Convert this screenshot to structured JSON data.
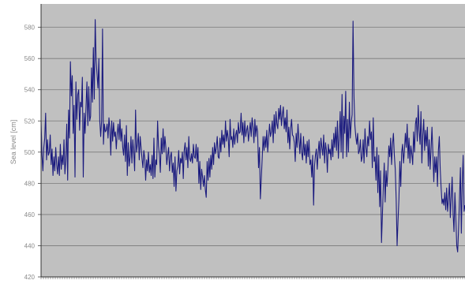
{
  "chart_data": {
    "type": "line",
    "title": "",
    "xlabel": "",
    "ylabel": "Sea level [cm]",
    "ylim": [
      420,
      595
    ],
    "yticks": [
      420,
      440,
      460,
      480,
      500,
      520,
      540,
      560,
      580
    ],
    "grid": "horizontal",
    "legend": "none",
    "colors": {
      "plot_bg": "#c0c0c0",
      "line": "#1a1a7e",
      "grid": "#7a7a7a",
      "axis_text": "#8a8a8a"
    },
    "series": [
      {
        "values": [
          520,
          498,
          488,
          503,
          509,
          525,
          495,
          508,
          498,
          500,
          511,
          492,
          502,
          485,
          497,
          488,
          503,
          492,
          486,
          497,
          485,
          505,
          489,
          498,
          492,
          508,
          486,
          495,
          518,
          482,
          527,
          509,
          558,
          536,
          549,
          512,
          530,
          484,
          545,
          521,
          537,
          540,
          514,
          532,
          529,
          548,
          484,
          525,
          512,
          529,
          545,
          517,
          542,
          520,
          523,
          554,
          532,
          567,
          534,
          585,
          559,
          550,
          541,
          560,
          520,
          510,
          520,
          579,
          505,
          518,
          513,
          514,
          518,
          509,
          522,
          515,
          498,
          520,
          507,
          519,
          510,
          513,
          502,
          512,
          518,
          508,
          521,
          507,
          515,
          503,
          498,
          511,
          494,
          517,
          485,
          506,
          491,
          497,
          510,
          493,
          508,
          500,
          488,
          527,
          500,
          505,
          512,
          495,
          510,
          503,
          496,
          490,
          501,
          496,
          482,
          495,
          488,
          500,
          487,
          492,
          485,
          498,
          483,
          509,
          484,
          495,
          492,
          520,
          504,
          498,
          487,
          509,
          499,
          515,
          500,
          510,
          503,
          492,
          498,
          503,
          488,
          497,
          500,
          487,
          493,
          478,
          497,
          475,
          488,
          491,
          501,
          486,
          496,
          493,
          500,
          483,
          501,
          506,
          495,
          503,
          490,
          510,
          496,
          494,
          499,
          493,
          505,
          497,
          496,
          505,
          494,
          503,
          480,
          494,
          476,
          489,
          484,
          478,
          485,
          476,
          471,
          494,
          482,
          496,
          484,
          498,
          489,
          503,
          492,
          506,
          499,
          503,
          510,
          497,
          496,
          509,
          500,
          514,
          505,
          511,
          503,
          520,
          507,
          514,
          509,
          497,
          521,
          508,
          510,
          503,
          515,
          505,
          511,
          514,
          506,
          519,
          512,
          513,
          525,
          511,
          519,
          506,
          520,
          510,
          514,
          517,
          507,
          513,
          519,
          510,
          522,
          516,
          506,
          521,
          510,
          517,
          513,
          490,
          503,
          470,
          483,
          496,
          510,
          501,
          510,
          503,
          514,
          500,
          509,
          518,
          510,
          513,
          520,
          506,
          524,
          512,
          526,
          518,
          515,
          528,
          521,
          530,
          517,
          524,
          529,
          515,
          522,
          513,
          527,
          506,
          516,
          502,
          515,
          521,
          511,
          510,
          506,
          494,
          512,
          503,
          518,
          508,
          499,
          512,
          500,
          495,
          510,
          498,
          505,
          493,
          507,
          497,
          508,
          492,
          495,
          484,
          498,
          466,
          491,
          498,
          502,
          489,
          500,
          507,
          496,
          509,
          503,
          498,
          511,
          493,
          506,
          501,
          487,
          505,
          499,
          502,
          495,
          508,
          497,
          512,
          503,
          516,
          501,
          520,
          496,
          510,
          526,
          500,
          537,
          496,
          523,
          512,
          539,
          497,
          521,
          500,
          532,
          509,
          519,
          524,
          584,
          536,
          517,
          510,
          505,
          512,
          499,
          501,
          508,
          494,
          497,
          508,
          493,
          515,
          503,
          497,
          510,
          504,
          520,
          508,
          513,
          490,
          522,
          494,
          497,
          482,
          503,
          474,
          498,
          465,
          488,
          442,
          460,
          478,
          493,
          468,
          488,
          478,
          489,
          504,
          497,
          509,
          492,
          505,
          512,
          498,
          489,
          470,
          440,
          456,
          470,
          494,
          478,
          500,
          505,
          493,
          501,
          512,
          503,
          518,
          496,
          509,
          493,
          504,
          499,
          492,
          513,
          500,
          518,
          522,
          507,
          530,
          514,
          505,
          526,
          493,
          511,
          521,
          501,
          514,
          504,
          516,
          491,
          508,
          489,
          502,
          516,
          499,
          481,
          497,
          487,
          497,
          478,
          501,
          510,
          489,
          477,
          467,
          470,
          466,
          474,
          463,
          477,
          462,
          470,
          480,
          458,
          472,
          484,
          461,
          449,
          474,
          458,
          440,
          436,
          451,
          470,
          490,
          448,
          480,
          498,
          462,
          466
        ]
      }
    ]
  }
}
